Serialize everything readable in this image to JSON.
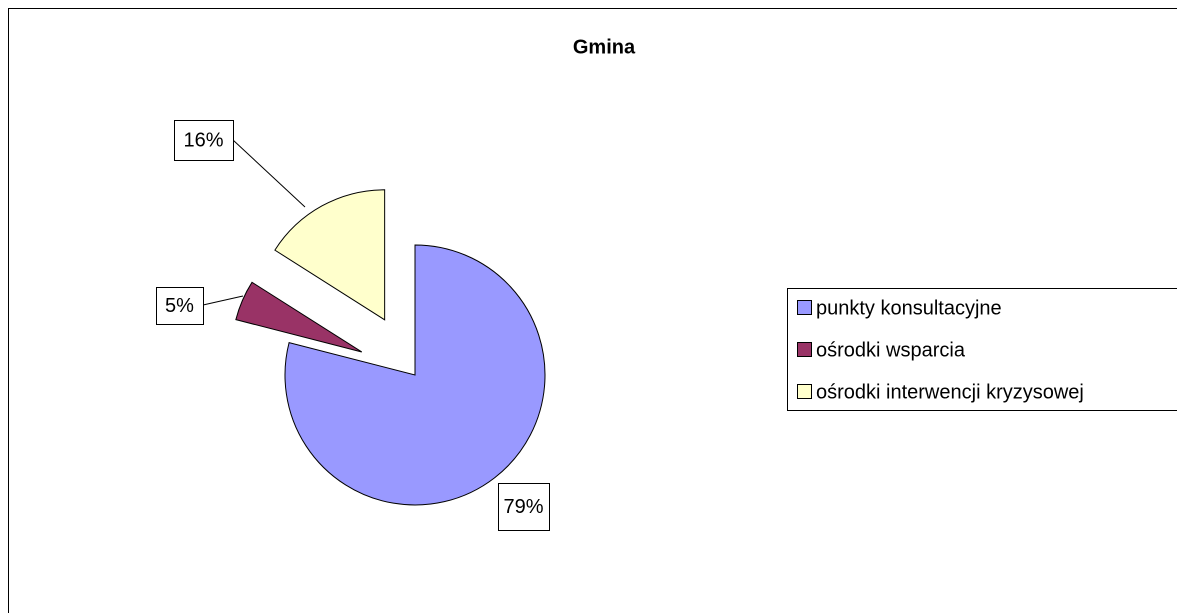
{
  "chart_data": {
    "type": "pie",
    "title": "Gmina",
    "categories": [
      "punkty konsultacyjne",
      "ośrodki wsparcia",
      "ośrodki interwencji kryzysowej"
    ],
    "values": [
      79,
      5,
      16
    ],
    "value_labels": [
      "79%",
      "5%",
      "16%"
    ],
    "colors": [
      "#9999ff",
      "#993366",
      "#ffffcc"
    ],
    "legend": "right"
  }
}
